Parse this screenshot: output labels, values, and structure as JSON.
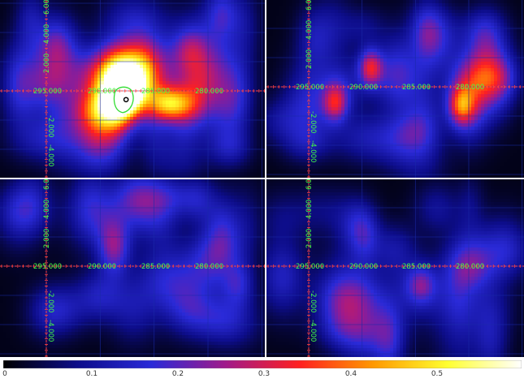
{
  "colors": {
    "background": "#000010",
    "grid": "#1a2aa8",
    "axis": "#ff4040",
    "axis_labels": "#44ff44",
    "contour_outer": "#33dd33",
    "contour_inner": "#000000"
  },
  "colormap": {
    "name": "heat",
    "stops": [
      "#000000",
      "#0d0d8a",
      "#2a2ad8",
      "#a01a8a",
      "#ff2020",
      "#ff9900",
      "#ffff30",
      "#ffffff"
    ],
    "tick_labels": [
      "0",
      "0.1",
      "0.2",
      "0.3",
      "0.4",
      "0.5"
    ]
  },
  "panels": [
    {
      "x_labels": [
        "295.000",
        "290.000",
        "285.000",
        "280.000"
      ],
      "y_labels_up": [
        "6.000",
        "4.000",
        "2.000"
      ],
      "y_labels_down": [
        "-2.000",
        "-4.000"
      ],
      "sources": [
        {
          "gx": 288.1,
          "gy": 0.8,
          "sx": 1.7,
          "sy": 1.6,
          "amp": 0.55
        },
        {
          "gx": 287.7,
          "gy": -0.1,
          "sx": 1.0,
          "sy": 1.0,
          "amp": 0.45
        },
        {
          "gx": 289.5,
          "gy": -1.3,
          "sx": 1.6,
          "sy": 1.1,
          "amp": 0.3
        },
        {
          "gx": 283.4,
          "gy": -0.9,
          "sx": 1.4,
          "sy": 0.8,
          "amp": 0.33
        },
        {
          "gx": 286.0,
          "gy": 1.5,
          "sx": 1.2,
          "sy": 1.6,
          "amp": 0.2
        },
        {
          "gx": 293.0,
          "gy": -1.0,
          "sx": 2.5,
          "sy": 2.0,
          "amp": 0.12
        },
        {
          "gx": 281.0,
          "gy": 1.0,
          "sx": 2.5,
          "sy": 2.0,
          "amp": 0.12
        },
        {
          "gx": 297.5,
          "gy": 0.5,
          "sx": 1.2,
          "sy": 2.0,
          "amp": 0.14
        },
        {
          "gx": 289.8,
          "gy": -3.5,
          "sx": 1.5,
          "sy": 1.5,
          "amp": 0.15
        },
        {
          "gx": 277.5,
          "gy": -0.5,
          "sx": 1.2,
          "sy": 2.0,
          "amp": 0.12
        },
        {
          "gx": 287.0,
          "gy": 5.0,
          "sx": 2.0,
          "sy": 1.2,
          "amp": 0.1
        },
        {
          "gx": 293.8,
          "gy": 3.0,
          "sx": 1.5,
          "sy": 1.5,
          "amp": 0.09
        }
      ]
    },
    {
      "x_labels": [
        "295.000",
        "290.000",
        "285.000",
        "280.000"
      ],
      "y_labels_up": [
        "6.000",
        "4.000",
        "2.000"
      ],
      "y_labels_down": [
        "-2.000",
        "-4.000"
      ],
      "sources": [
        {
          "gx": 289.2,
          "gy": 1.3,
          "sx": 0.8,
          "sy": 0.9,
          "amp": 0.26
        },
        {
          "gx": 292.5,
          "gy": -1.1,
          "sx": 0.8,
          "sy": 0.9,
          "amp": 0.22
        },
        {
          "gx": 280.7,
          "gy": -1.3,
          "sx": 0.8,
          "sy": 0.9,
          "amp": 0.22
        },
        {
          "gx": 286.5,
          "gy": 0.5,
          "sx": 2.0,
          "sy": 1.5,
          "amp": 0.11
        },
        {
          "gx": 283.0,
          "gy": 3.0,
          "sx": 1.5,
          "sy": 1.5,
          "amp": 0.1
        },
        {
          "gx": 278.5,
          "gy": 1.0,
          "sx": 1.5,
          "sy": 2.0,
          "amp": 0.1
        },
        {
          "gx": 290.0,
          "gy": -3.5,
          "sx": 2.0,
          "sy": 1.2,
          "amp": 0.09
        },
        {
          "gx": 294.5,
          "gy": 3.5,
          "sx": 1.2,
          "sy": 1.5,
          "amp": 0.09
        },
        {
          "gx": 285.0,
          "gy": -3.0,
          "sx": 1.5,
          "sy": 1.2,
          "amp": 0.08
        }
      ]
    },
    {
      "x_labels": [
        "295.000",
        "290.000",
        "285.000",
        "280.000"
      ],
      "y_labels_up": [
        "6.000",
        "4.000",
        "2.000"
      ],
      "y_labels_down": [
        "-2.000",
        "-4.000"
      ],
      "sources": [
        {
          "gx": 288.7,
          "gy": 1.2,
          "sx": 1.0,
          "sy": 1.3,
          "amp": 0.17
        },
        {
          "gx": 290.0,
          "gy": -2.0,
          "sx": 1.6,
          "sy": 1.2,
          "amp": 0.11
        },
        {
          "gx": 284.0,
          "gy": -1.0,
          "sx": 2.0,
          "sy": 1.5,
          "amp": 0.1
        },
        {
          "gx": 279.0,
          "gy": 1.5,
          "sx": 1.5,
          "sy": 1.8,
          "amp": 0.09
        },
        {
          "gx": 293.5,
          "gy": -3.0,
          "sx": 1.8,
          "sy": 1.2,
          "amp": 0.08
        },
        {
          "gx": 286.0,
          "gy": 4.0,
          "sx": 1.5,
          "sy": 1.2,
          "amp": 0.08
        },
        {
          "gx": 281.5,
          "gy": -3.0,
          "sx": 1.5,
          "sy": 1.2,
          "amp": 0.08
        }
      ]
    },
    {
      "x_labels": [
        "295.000",
        "290.000",
        "285.000",
        "280.000"
      ],
      "y_labels_up": [
        "6.000",
        "4.000",
        "2.000"
      ],
      "y_labels_down": [
        "-2.000",
        "-4.000"
      ],
      "sources": [
        {
          "gx": 284.5,
          "gy": -1.3,
          "sx": 0.9,
          "sy": 0.9,
          "amp": 0.13
        },
        {
          "gx": 290.5,
          "gy": 2.8,
          "sx": 1.3,
          "sy": 1.3,
          "amp": 0.1
        },
        {
          "gx": 280.0,
          "gy": 0.8,
          "sx": 1.5,
          "sy": 1.5,
          "amp": 0.1
        },
        {
          "gx": 287.0,
          "gy": 1.2,
          "sx": 1.5,
          "sy": 1.2,
          "amp": 0.09
        },
        {
          "gx": 292.0,
          "gy": -3.0,
          "sx": 1.5,
          "sy": 1.5,
          "amp": 0.09
        },
        {
          "gx": 283.0,
          "gy": 4.0,
          "sx": 1.5,
          "sy": 1.2,
          "amp": 0.08
        },
        {
          "gx": 278.0,
          "gy": -3.0,
          "sx": 1.5,
          "sy": 1.5,
          "amp": 0.08
        }
      ]
    }
  ]
}
